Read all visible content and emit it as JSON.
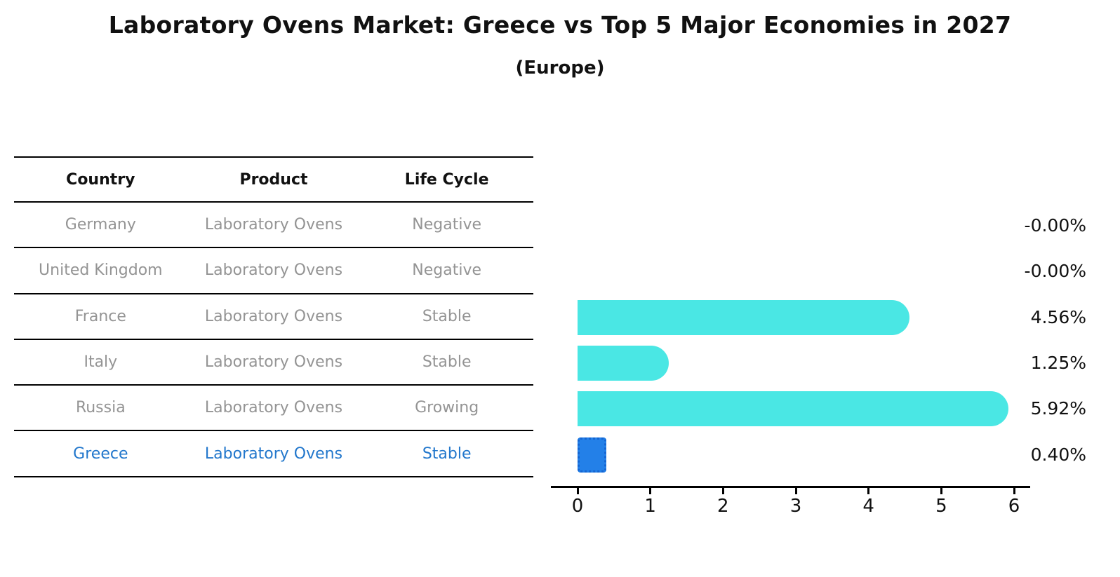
{
  "chart_data": {
    "type": "bar",
    "orientation": "horizontal",
    "title": "Laboratory Ovens Market: Greece vs Top 5 Major Economies in 2027",
    "subtitle": "(Europe)",
    "categories": [
      "Germany",
      "United Kingdom",
      "France",
      "Italy",
      "Russia",
      "Greece"
    ],
    "values": [
      -0.0,
      -0.0,
      4.56,
      1.25,
      5.92,
      0.4
    ],
    "value_labels": [
      "-0.00%",
      "-0.00%",
      "4.56%",
      "1.25%",
      "5.92%",
      "0.40%"
    ],
    "x_ticks": [
      "0",
      "1",
      "2",
      "3",
      "4",
      "5",
      "6"
    ],
    "xlim": [
      0,
      6.45
    ],
    "grid": false,
    "legend": false,
    "bar_color": "#4ae7e4",
    "highlight_index": 5,
    "highlight_bar_color": "#2380e8",
    "highlight_border_color": "#1565d2",
    "highlight_text_color": "#2277cc"
  },
  "table": {
    "headers": [
      "Country",
      "Product",
      "Life Cycle"
    ],
    "rows": [
      {
        "country": "Germany",
        "product": "Laboratory Ovens",
        "life_cycle": "Negative"
      },
      {
        "country": "United Kingdom",
        "product": "Laboratory Ovens",
        "life_cycle": "Negative"
      },
      {
        "country": "France",
        "product": "Laboratory Ovens",
        "life_cycle": "Stable"
      },
      {
        "country": "Italy",
        "product": "Laboratory Ovens",
        "life_cycle": "Stable"
      },
      {
        "country": "Russia",
        "product": "Laboratory Ovens",
        "life_cycle": "Growing"
      },
      {
        "country": "Greece",
        "product": "Laboratory Ovens",
        "life_cycle": "Stable"
      }
    ]
  }
}
